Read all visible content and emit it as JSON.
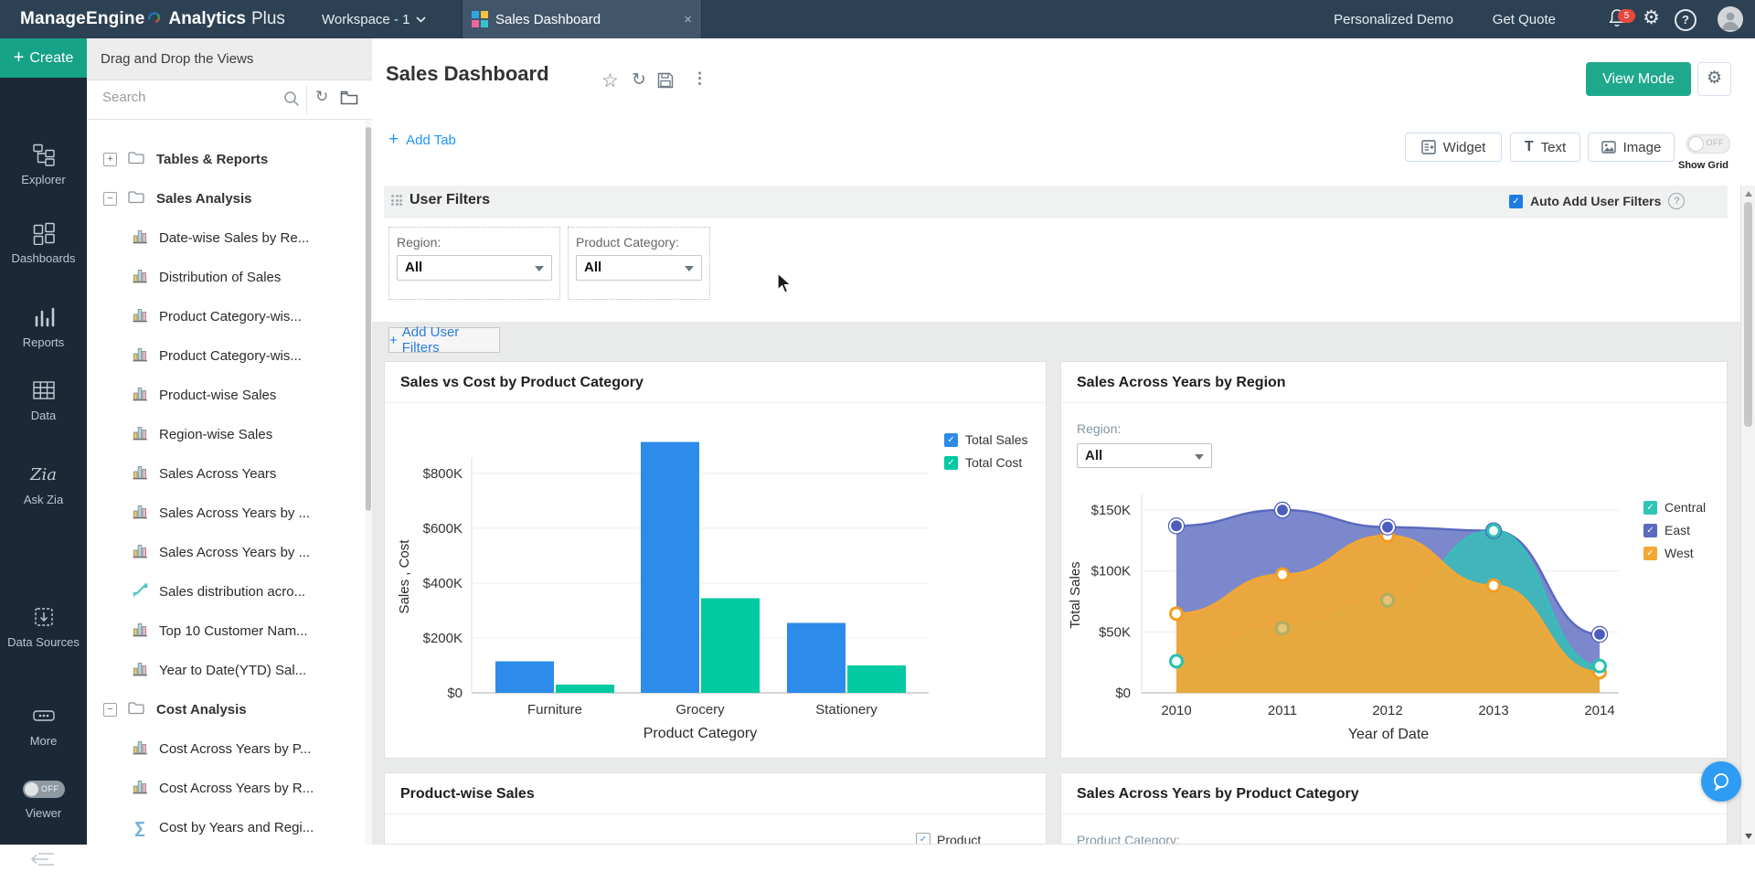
{
  "topbar": {
    "brand_bold": "ManageEngine",
    "brand_product_bold": "Analytics",
    "brand_product_light": "Plus",
    "workspace": "Workspace - 1",
    "tab_label": "Sales Dashboard",
    "nav": [
      "Personalized Demo",
      "Get Quote"
    ],
    "badge_count": "5"
  },
  "rail": {
    "create_label": "Create",
    "items": [
      {
        "icon": "explorer-icon",
        "label": "Explorer"
      },
      {
        "icon": "dashboards-icon",
        "label": "Dashboards"
      },
      {
        "icon": "reports-icon",
        "label": "Reports"
      },
      {
        "icon": "data-icon",
        "label": "Data"
      },
      {
        "icon": "ask-zia-icon",
        "label": "Ask Zia"
      },
      {
        "icon": "data-sources-icon",
        "label": "Data Sources"
      },
      {
        "icon": "more-icon",
        "label": "More"
      }
    ],
    "viewer_label": "Viewer",
    "viewer_state": "OFF"
  },
  "panel": {
    "header": "Drag and Drop the Views",
    "search_placeholder": "Search",
    "tree": [
      {
        "kind": "folder",
        "state": "collapsed",
        "label": "Tables & Reports"
      },
      {
        "kind": "folder",
        "state": "expanded",
        "label": "Sales Analysis"
      },
      {
        "kind": "view",
        "icon": "bar-chart",
        "label": "Date-wise Sales by Re..."
      },
      {
        "kind": "view",
        "icon": "bar-chart",
        "label": "Distribution of Sales"
      },
      {
        "kind": "view",
        "icon": "bar-chart",
        "label": "Product Category-wis..."
      },
      {
        "kind": "view",
        "icon": "bar-chart",
        "label": "Product Category-wis..."
      },
      {
        "kind": "view",
        "icon": "bar-chart",
        "label": "Product-wise Sales"
      },
      {
        "kind": "view",
        "icon": "bar-chart",
        "label": "Region-wise Sales"
      },
      {
        "kind": "view",
        "icon": "bar-chart",
        "label": "Sales Across Years"
      },
      {
        "kind": "view",
        "icon": "bar-chart",
        "label": "Sales Across Years by ..."
      },
      {
        "kind": "view",
        "icon": "bar-chart",
        "label": "Sales Across Years by ..."
      },
      {
        "kind": "view",
        "icon": "scatter",
        "label": "Sales distribution acro..."
      },
      {
        "kind": "view",
        "icon": "bar-chart",
        "label": "Top 10 Customer Nam..."
      },
      {
        "kind": "view",
        "icon": "bar-chart",
        "label": "Year to Date(YTD) Sal..."
      },
      {
        "kind": "folder",
        "state": "expanded",
        "label": "Cost Analysis"
      },
      {
        "kind": "view",
        "icon": "bar-chart",
        "label": "Cost Across Years by P..."
      },
      {
        "kind": "view",
        "icon": "bar-chart",
        "label": "Cost Across Years by R..."
      },
      {
        "kind": "view",
        "icon": "sigma",
        "label": "Cost by Years and Regi..."
      }
    ]
  },
  "main": {
    "title": "Sales Dashboard",
    "view_mode_label": "View Mode",
    "add_tab_label": "Add Tab",
    "widget_label": "Widget",
    "text_label": "Text",
    "image_label": "Image",
    "show_grid_label": "Show Grid",
    "show_grid_state": "OFF",
    "user_filters": {
      "title": "User Filters",
      "auto_add_label": "Auto Add User Filters",
      "add_filter_label": "Add User Filters",
      "filters": [
        {
          "label": "Region:",
          "value": "All"
        },
        {
          "label": "Product Category:",
          "value": "All"
        }
      ]
    },
    "region_filter": {
      "label": "Region:",
      "value": "All"
    },
    "bottom_cards": [
      {
        "title": "Product-wise Sales",
        "partial_legend": "Product"
      },
      {
        "title": "Sales Across Years by Product Category",
        "partial_label": "Product Category:"
      }
    ]
  },
  "chart_data": [
    {
      "type": "bar",
      "title": "Sales vs Cost by Product Category",
      "categories": [
        "Furniture",
        "Grocery",
        "Stationery"
      ],
      "series": [
        {
          "name": "Total Sales",
          "color": "#2d8bea",
          "values": [
            115000,
            915000,
            255000
          ]
        },
        {
          "name": "Total Cost",
          "color": "#01c9a2",
          "values": [
            30000,
            345000,
            100000
          ]
        }
      ],
      "xlabel": "Product Category",
      "ylabel": "Sales , Cost",
      "yticks": [
        0,
        200000,
        400000,
        600000,
        800000
      ],
      "ylim": [
        0,
        960000
      ],
      "legend_position": "right",
      "grid": true
    },
    {
      "type": "area",
      "title": "Sales Across Years by Region",
      "x": [
        2010,
        2011,
        2012,
        2013,
        2014
      ],
      "series": [
        {
          "name": "Central",
          "color": "#2ec4b6",
          "values": [
            26000,
            53000,
            76000,
            133000,
            22000
          ]
        },
        {
          "name": "East",
          "color": "#5b6abf",
          "values": [
            137000,
            150000,
            136000,
            133000,
            48000
          ]
        },
        {
          "name": "West",
          "color": "#f3a833",
          "values": [
            65000,
            97000,
            129000,
            88000,
            17000
          ]
        }
      ],
      "xlabel": "Year of Date",
      "ylabel": "Total Sales",
      "yticks": [
        0,
        50000,
        100000,
        150000
      ],
      "ylim": [
        0,
        165000
      ],
      "legend_position": "right",
      "grid": true
    }
  ]
}
